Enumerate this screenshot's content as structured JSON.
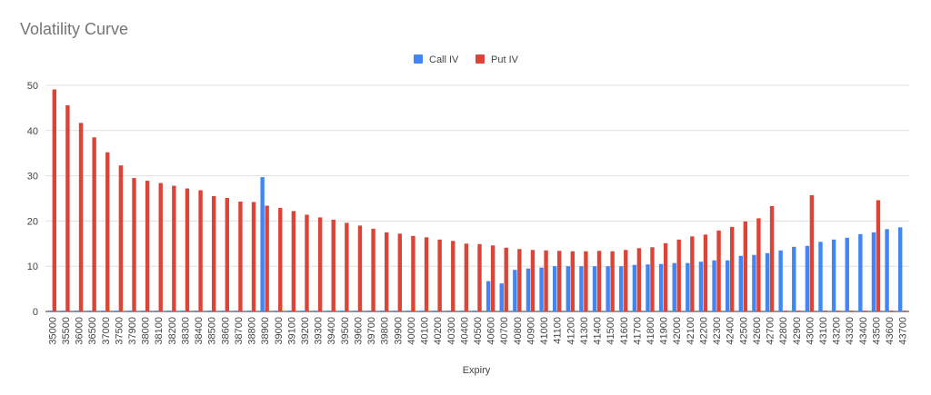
{
  "chart_data": {
    "type": "bar",
    "title": "Volatility Curve",
    "xlabel": "Expiry",
    "ylabel": "",
    "ylim": [
      0,
      50
    ],
    "yticks": [
      0,
      10,
      20,
      30,
      40,
      50
    ],
    "grid": true,
    "legend_position": "top",
    "categories": [
      "35000",
      "35500",
      "36000",
      "36500",
      "37000",
      "37500",
      "37900",
      "38000",
      "38100",
      "38200",
      "38300",
      "38400",
      "38500",
      "38600",
      "38700",
      "38800",
      "38900",
      "39000",
      "39100",
      "39200",
      "39300",
      "39400",
      "39500",
      "39600",
      "39700",
      "39800",
      "39900",
      "40000",
      "40100",
      "40200",
      "40300",
      "40400",
      "40500",
      "40600",
      "40700",
      "40800",
      "40900",
      "41000",
      "41100",
      "41200",
      "41300",
      "41400",
      "41500",
      "41600",
      "41700",
      "41800",
      "41900",
      "42000",
      "42100",
      "42200",
      "42300",
      "42400",
      "42500",
      "42600",
      "42700",
      "42800",
      "42900",
      "43000",
      "43100",
      "43200",
      "43300",
      "43400",
      "43500",
      "43600",
      "43700"
    ],
    "series": [
      {
        "name": "Call IV",
        "color": "#4285f4",
        "values": [
          0,
          0,
          0,
          0,
          0,
          0,
          0,
          0,
          0,
          0,
          0,
          0,
          0,
          0,
          0,
          0,
          29.7,
          0,
          0,
          0,
          0,
          0,
          0,
          0,
          0,
          0,
          0,
          0,
          0,
          0,
          0,
          0,
          0,
          6.7,
          6.2,
          9.2,
          9.5,
          9.7,
          10.0,
          10.0,
          10.0,
          10.0,
          10.0,
          10.0,
          10.3,
          10.4,
          10.5,
          10.7,
          10.7,
          11.0,
          11.3,
          11.3,
          12.3,
          12.5,
          12.9,
          13.5,
          14.3,
          14.5,
          15.4,
          15.9,
          16.3,
          17.1,
          17.5,
          18.2,
          18.6
        ]
      },
      {
        "name": "Put IV",
        "color": "#db4437",
        "values": [
          49.1,
          45.6,
          41.7,
          38.5,
          35.2,
          32.3,
          29.5,
          28.9,
          28.4,
          27.8,
          27.2,
          26.8,
          25.5,
          25.1,
          24.3,
          24.2,
          23.4,
          22.9,
          22.2,
          21.4,
          20.8,
          20.3,
          19.6,
          19.0,
          18.3,
          17.5,
          17.2,
          16.7,
          16.4,
          15.9,
          15.6,
          15.0,
          14.9,
          14.6,
          14.1,
          13.8,
          13.6,
          13.5,
          13.4,
          13.3,
          13.3,
          13.4,
          13.3,
          13.6,
          14.0,
          14.2,
          15.1,
          15.9,
          16.6,
          17.0,
          17.9,
          18.7,
          19.9,
          20.6,
          23.3,
          0,
          0,
          25.7,
          0,
          0,
          0,
          0,
          24.6,
          0,
          0
        ]
      }
    ]
  }
}
